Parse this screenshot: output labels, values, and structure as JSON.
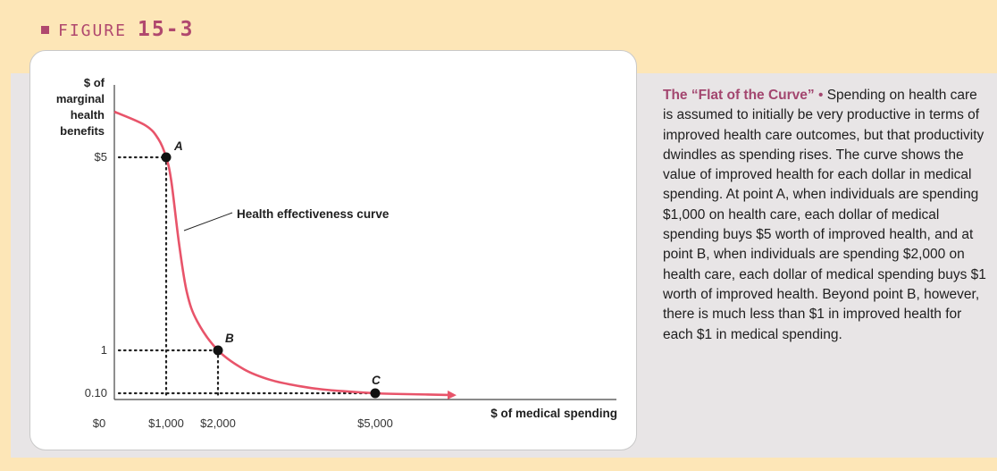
{
  "figure": {
    "word": "FIGURE",
    "number": "15-3"
  },
  "caption": {
    "title": "The “Flat of the Curve”",
    "bullet": "•",
    "body": "Spending on health care is assumed to initially be very productive in terms of improved health care outcomes, but that productivity dwindles as spending rises. The curve shows the value of improved health for each dollar in medical spending. At point A, when individuals are spending $1,000 on health care, each dollar of medical spending buys $5 worth of improved health, and at point B, when individuals are spending $2,000 on health care, each dollar of medical spending buys $1 worth of improved health. Beyond point B, however, there is much less than $1 in improved health for each $1 in medical spending."
  },
  "colors": {
    "accent": "#b0486e",
    "curve": "#e8546a",
    "header_band": "#fde6b7",
    "background": "#e8e5e6"
  },
  "chart_data": {
    "type": "line",
    "ylabel": "$ of marginal health benefits",
    "xlabel": "$ of medical spending",
    "x_tick_labels": [
      "$0",
      "$1,000",
      "$2,000",
      "$5,000"
    ],
    "x_tick_values": [
      0,
      1000,
      2000,
      5000
    ],
    "y_tick_labels": [
      "$5",
      "1",
      "0.10"
    ],
    "y_tick_values": [
      5,
      1,
      0.1
    ],
    "series": [
      {
        "name": "Health effectiveness curve",
        "points": [
          [
            0,
            6
          ],
          [
            600,
            5.7
          ],
          [
            850,
            5.4
          ],
          [
            1000,
            5
          ],
          [
            1100,
            4.5
          ],
          [
            1250,
            3.2
          ],
          [
            1400,
            2.2
          ],
          [
            1600,
            1.6
          ],
          [
            2000,
            1
          ],
          [
            2500,
            0.6
          ],
          [
            3000,
            0.38
          ],
          [
            3500,
            0.26
          ],
          [
            4000,
            0.18
          ],
          [
            5000,
            0.1
          ],
          [
            6000,
            0.08
          ],
          [
            6500,
            0.07
          ]
        ]
      }
    ],
    "annotation": "Health effectiveness curve",
    "marked_points": [
      {
        "label": "A",
        "x": 1000,
        "y": 5
      },
      {
        "label": "B",
        "x": 2000,
        "y": 1
      },
      {
        "label": "C",
        "x": 5000,
        "y": 0.1
      }
    ],
    "grid": false
  }
}
